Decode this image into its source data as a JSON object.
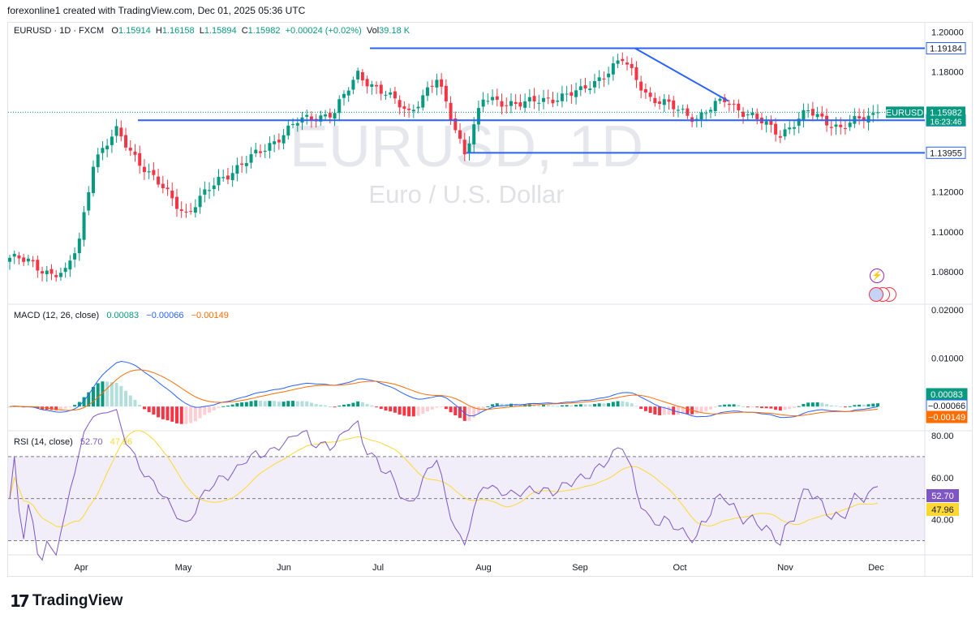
{
  "credit": "forexonline1 created with TradingView.com, Dec 01, 2025 05:36 UTC",
  "brand": "TradingView",
  "colors": {
    "up": "#089981",
    "down": "#f23645",
    "hline": "#2962ff",
    "macd": "#2962ff",
    "signal": "#ff6d00",
    "rsi": "#7e57c2",
    "rsima": "#fdd835",
    "grid": "#f0f3fa"
  },
  "main": {
    "symbol_line": "EURUSD · 1D · FXCM",
    "o_label": "O",
    "o": "1.15914",
    "h_label": "H",
    "h": "1.16158",
    "l_label": "L",
    "l": "1.15894",
    "c_label": "C",
    "c": "1.15982",
    "change": "+0.00024 (+0.02%)",
    "vol_label": "Vol",
    "vol": "39.18 K",
    "watermark": "EURUSD, 1D",
    "watermark_sub": "Euro / U.S. Dollar"
  },
  "price_axis": {
    "ticks": [
      "1.20000",
      "1.18000",
      "1.12000",
      "1.10000",
      "1.08000"
    ],
    "ymin": 1.065,
    "ymax": 1.203
  },
  "levels": [
    {
      "value": 1.19184,
      "label": "1.19184"
    },
    {
      "value": 1.15581,
      "label": "1.15581"
    },
    {
      "value": 1.13955,
      "label": "1.13955"
    }
  ],
  "last_price": {
    "symbol": "EURUSD",
    "value": "1.15982",
    "countdown": "16:23:46"
  },
  "macd": {
    "title": "MACD (12, 26, close)",
    "v1": "0.00083",
    "v2": "−0.00066",
    "v3": "−0.00149",
    "ticks": [
      "0.02000",
      "0.01000"
    ],
    "ymin": -0.0045,
    "ymax": 0.0195
  },
  "rsi": {
    "title": "RSI (14, close)",
    "v1": "52.70",
    "v2": "47.96",
    "ticks": [
      "80.00",
      "60.00",
      "40.00"
    ],
    "upper": 70,
    "lower": 30,
    "mid": 50,
    "ymin": 24,
    "ymax": 80
  },
  "x_axis": {
    "months": [
      "Apr",
      "May",
      "Jun",
      "Jul",
      "Aug",
      "Sep",
      "Oct",
      "Nov",
      "Dec"
    ]
  },
  "chart_data": {
    "type": "candlestick",
    "title": "EURUSD, 1D",
    "subtitle": "Euro / U.S. Dollar",
    "x": "daily, mid-March 2025 to Dec 01 2025",
    "close_keypoints": [
      [
        "Mar 14",
        1.087
      ],
      [
        "Mar 20",
        1.085
      ],
      [
        "Mar 27",
        1.079
      ],
      [
        "Apr 01",
        1.079
      ],
      [
        "Apr 04",
        1.096
      ],
      [
        "Apr 11",
        1.135
      ],
      [
        "Apr 21",
        1.15
      ],
      [
        "May 01",
        1.129
      ],
      [
        "May 12",
        1.109
      ],
      [
        "May 20",
        1.126
      ],
      [
        "Jun 02",
        1.14
      ],
      [
        "Jun 12",
        1.155
      ],
      [
        "Jun 24",
        1.16
      ],
      [
        "Jul 01",
        1.179
      ],
      [
        "Jul 16",
        1.16
      ],
      [
        "Jul 24",
        1.176
      ],
      [
        "Aug 01",
        1.14
      ],
      [
        "Aug 07",
        1.166
      ],
      [
        "Aug 20",
        1.164
      ],
      [
        "Sep 05",
        1.17
      ],
      [
        "Sep 17",
        1.186
      ],
      [
        "Sep 25",
        1.167
      ],
      [
        "Oct 09",
        1.157
      ],
      [
        "Oct 17",
        1.166
      ],
      [
        "Nov 04",
        1.149
      ],
      [
        "Nov 12",
        1.16
      ],
      [
        "Nov 21",
        1.152
      ],
      [
        "Dec 01",
        1.1598
      ]
    ],
    "macd_series": [
      "MACD 0.00083",
      "Signal −0.00066",
      "Histogram −0.00149"
    ],
    "rsi_series": [
      "RSI 52.70",
      "RSI MA 47.96"
    ]
  }
}
